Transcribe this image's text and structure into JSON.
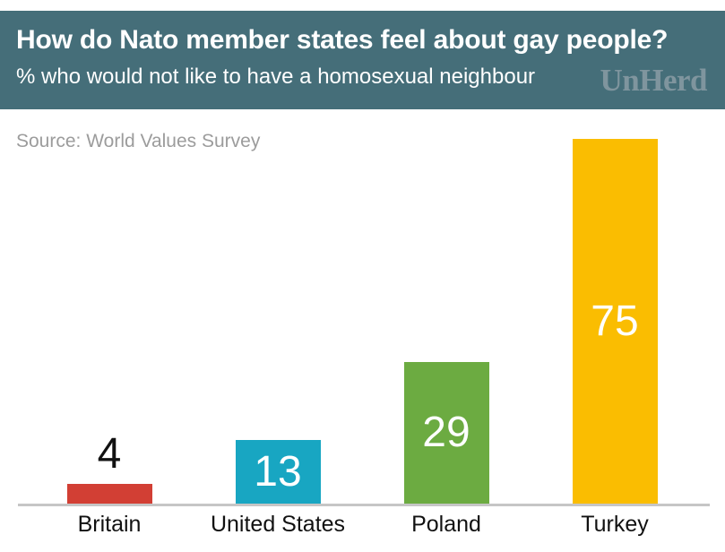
{
  "header": {
    "title": "How do Nato member states feel about gay people?",
    "subtitle": "% who would not like to have a homosexual neighbour",
    "logo": "UnHerd"
  },
  "source": "Source: World Values Survey",
  "chart_data": {
    "type": "bar",
    "title": "How do Nato member states feel about gay people?",
    "subtitle": "% who would not like to have a homosexual neighbour",
    "source": "Source: World Values Survey",
    "categories": [
      "Britain",
      "United States",
      "Poland",
      "Turkey"
    ],
    "values": [
      4,
      13,
      29,
      75
    ],
    "unit": "%",
    "bar_colors": [
      "#d23f34",
      "#18a6c2",
      "#6cab41",
      "#fabd01"
    ],
    "value_label_colors": [
      "#111111",
      "#ffffff",
      "#ffffff",
      "#ffffff"
    ],
    "value_label_position": [
      "outside",
      "inside",
      "inside",
      "inside"
    ],
    "xlabel": "",
    "ylabel": "",
    "ylim": [
      0,
      81
    ],
    "grid": false,
    "legend": false
  },
  "colors": {
    "background": "#ffffff",
    "header_bg": "#456e79",
    "header_text": "#ffffff",
    "logo_text": "#7f959e",
    "source_text": "#9c9c9c",
    "axis_line": "#c6c6c6",
    "category_label": "#111111"
  }
}
